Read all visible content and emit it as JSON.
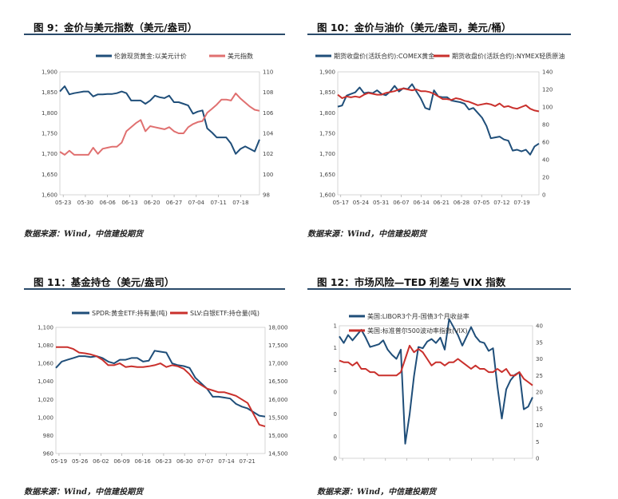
{
  "colors": {
    "blue": "#1f4e79",
    "red": "#c9302c",
    "pink": "#e07070",
    "rule": "#2a4a6a"
  },
  "source_text": "数据来源：Wind，中信建投期货",
  "panels": {
    "p9": {
      "title": "图 9：金价与美元指数（美元/盎司）"
    },
    "p10": {
      "title": "图 10：金价与油价（美元/盎司，美元/桶）"
    },
    "p11": {
      "title": "图 11：基金持仓（美元/盎司）"
    },
    "p12": {
      "title": "图 12：市场风险—TED 利差与 VIX 指数"
    }
  },
  "chart_data": [
    {
      "id": "p9",
      "type": "line",
      "x_ticks": [
        "05-23",
        "05-30",
        "06-06",
        "06-13",
        "06-20",
        "06-27",
        "07-04",
        "07-11",
        "07-18"
      ],
      "y_left": {
        "min": 1600,
        "max": 1900,
        "ticks": [
          "1,600",
          "1,650",
          "1,700",
          "1,750",
          "1,800",
          "1,850",
          "1,900"
        ]
      },
      "y_right": {
        "min": 98,
        "max": 110,
        "ticks": [
          "98",
          "100",
          "102",
          "104",
          "106",
          "108",
          "110"
        ]
      },
      "series": [
        {
          "name": "伦敦现货黄金:以美元计价",
          "axis": "left",
          "color": "#1f4e79",
          "values": [
            1852,
            1865,
            1845,
            1848,
            1850,
            1852,
            1852,
            1840,
            1845,
            1845,
            1846,
            1846,
            1848,
            1852,
            1848,
            1830,
            1830,
            1830,
            1822,
            1830,
            1842,
            1838,
            1836,
            1842,
            1826,
            1826,
            1822,
            1818,
            1798,
            1803,
            1806,
            1762,
            1752,
            1740,
            1740,
            1740,
            1725,
            1700,
            1712,
            1718,
            1712,
            1706,
            1735
          ]
        },
        {
          "name": "美元指数",
          "axis": "right",
          "color": "#e07070",
          "values": [
            102.2,
            101.9,
            102.3,
            101.9,
            101.9,
            101.9,
            101.9,
            102.6,
            102.0,
            102.5,
            102.6,
            102.7,
            102.7,
            103.1,
            104.2,
            104.6,
            105.0,
            105.3,
            104.2,
            104.7,
            104.6,
            104.5,
            104.4,
            104.6,
            104.2,
            104.0,
            104.0,
            104.6,
            104.9,
            105.1,
            105.2,
            106.0,
            106.4,
            106.8,
            107.3,
            107.3,
            107.2,
            107.9,
            107.4,
            107.0,
            106.6,
            106.3,
            106.2
          ]
        }
      ]
    },
    {
      "id": "p10",
      "type": "line",
      "x_ticks": [
        "05-17",
        "05-24",
        "05-31",
        "06-07",
        "06-14",
        "06-21",
        "06-28",
        "07-05",
        "07-12",
        "07-19"
      ],
      "y_left": {
        "min": 1600,
        "max": 1900,
        "ticks": [
          "1,600",
          "1,650",
          "1,700",
          "1,750",
          "1,800",
          "1,850",
          "1,900"
        ]
      },
      "y_right": {
        "min": 0,
        "max": 140,
        "ticks": [
          "0",
          "20",
          "40",
          "60",
          "80",
          "100",
          "120",
          "140"
        ]
      },
      "series": [
        {
          "name": "期货收盘价(活跃合约):COMEX黄金",
          "axis": "left",
          "color": "#1f4e79",
          "values": [
            1815,
            1818,
            1842,
            1846,
            1850,
            1862,
            1848,
            1850,
            1848,
            1855,
            1846,
            1843,
            1852,
            1866,
            1852,
            1860,
            1858,
            1870,
            1852,
            1835,
            1812,
            1808,
            1855,
            1840,
            1838,
            1838,
            1830,
            1828,
            1826,
            1822,
            1808,
            1812,
            1800,
            1788,
            1768,
            1738,
            1740,
            1742,
            1735,
            1732,
            1708,
            1710,
            1706,
            1710,
            1698,
            1718,
            1725
          ]
        },
        {
          "name": "期货收盘价(活跃合约):NYMEX轻质原油",
          "axis": "right",
          "color": "#c9302c",
          "values": [
            114,
            110,
            112,
            111,
            112,
            111,
            114,
            116,
            115,
            114,
            114,
            116,
            117,
            118,
            120,
            121,
            120,
            119,
            120,
            118,
            118,
            117,
            115,
            112,
            109,
            109,
            108,
            110,
            109,
            107,
            106,
            104,
            102,
            103,
            104,
            103,
            101,
            104,
            100,
            101,
            99,
            98,
            100,
            102,
            98,
            96,
            95
          ]
        }
      ]
    },
    {
      "id": "p11",
      "type": "line",
      "x_ticks": [
        "05-19",
        "05-26",
        "06-02",
        "06-09",
        "06-16",
        "06-23",
        "06-30",
        "07-07",
        "07-14",
        "07-21"
      ],
      "y_left": {
        "min": 960,
        "max": 1100,
        "ticks": [
          "960",
          "980",
          "1,000",
          "1,020",
          "1,040",
          "1,060",
          "1,080",
          "1,100"
        ]
      },
      "y_right": {
        "min": 14500,
        "max": 18000,
        "ticks": [
          "14,500",
          "15,000",
          "15,500",
          "16,000",
          "16,500",
          "17,000",
          "17,500",
          "18,000"
        ]
      },
      "series": [
        {
          "name": "SPDR:黄金ETF:持有量(吨)",
          "axis": "left",
          "color": "#1f4e79",
          "values": [
            1055,
            1062,
            1064,
            1066,
            1068,
            1068,
            1067,
            1068,
            1066,
            1062,
            1060,
            1064,
            1064,
            1066,
            1066,
            1062,
            1063,
            1074,
            1073,
            1072,
            1060,
            1058,
            1057,
            1055,
            1044,
            1038,
            1032,
            1023,
            1023,
            1022,
            1021,
            1015,
            1012,
            1010,
            1006,
            1002,
            1001
          ]
        },
        {
          "name": "SLV:白银ETF:持仓量(吨)",
          "axis": "right",
          "color": "#c9302c",
          "values": [
            17450,
            17450,
            17450,
            17400,
            17300,
            17280,
            17250,
            17200,
            17100,
            16950,
            16950,
            17000,
            16900,
            16920,
            16900,
            16900,
            16920,
            16950,
            17000,
            16900,
            16950,
            16920,
            16850,
            16700,
            16500,
            16400,
            16300,
            16250,
            16200,
            16200,
            16150,
            16100,
            16000,
            15900,
            15600,
            15300,
            15250
          ]
        }
      ]
    },
    {
      "id": "p12",
      "type": "line",
      "x_ticks": [
        "",
        "",
        "",
        "",
        "",
        "",
        "",
        "",
        ""
      ],
      "y_left": {
        "min": 0,
        "max": 1,
        "ticks": [
          "0",
          "0",
          "0",
          "0",
          "1",
          "1",
          "1"
        ]
      },
      "y_right": {
        "min": 0,
        "max": 40,
        "ticks": [
          "0",
          "5",
          "10",
          "15",
          "20",
          "25",
          "30",
          "35",
          "40"
        ]
      },
      "series": [
        {
          "name": "美国:LIBOR3个月-国债3个月收益率",
          "axis": "left",
          "color": "#1f4e79",
          "values": [
            0.92,
            0.87,
            0.93,
            0.89,
            0.93,
            0.97,
            0.91,
            0.84,
            0.85,
            0.86,
            0.89,
            0.82,
            0.78,
            0.75,
            0.82,
            0.11,
            0.33,
            0.62,
            0.84,
            0.83,
            0.88,
            0.9,
            0.87,
            0.91,
            0.82,
            1.05,
            0.99,
            0.93,
            0.85,
            0.92,
            0.99,
            0.92,
            0.88,
            0.87,
            0.81,
            0.83,
            0.54,
            0.3,
            0.52,
            0.59,
            0.63,
            0.65,
            0.37,
            0.39,
            0.46
          ]
        },
        {
          "name": "美国:标准普尔500波动率指数(VIX)",
          "axis": "right",
          "color": "#c9302c",
          "values": [
            29.5,
            29,
            29,
            28,
            29,
            27,
            27,
            26,
            26,
            25,
            25,
            25,
            25,
            25,
            26,
            30,
            34,
            32,
            33,
            32,
            30,
            28,
            29,
            29,
            28,
            29,
            29,
            30,
            29,
            28,
            27,
            28,
            27,
            27,
            26,
            26,
            27,
            26,
            27,
            25,
            25,
            26,
            24,
            23,
            22
          ]
        }
      ]
    }
  ]
}
